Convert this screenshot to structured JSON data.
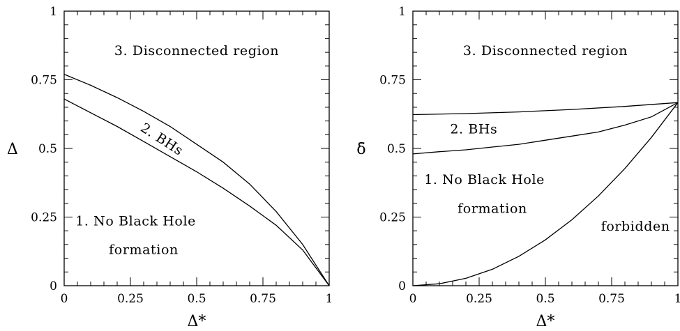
{
  "chart_data": [
    {
      "type": "line",
      "xlabel": "Δ*",
      "ylabel": "Δ",
      "xlim": [
        0,
        1
      ],
      "ylim": [
        0,
        1
      ],
      "grid": false,
      "xticks": [
        "0",
        "0.25",
        "0.5",
        "0.75",
        "1"
      ],
      "yticks": [
        "0",
        "0.25",
        "0.5",
        "0.75",
        "1"
      ],
      "series": [
        {
          "x": [
            0,
            0.1,
            0.2,
            0.3,
            0.4,
            0.5,
            0.6,
            0.7,
            0.8,
            0.9,
            1.0
          ],
          "y": [
            0.77,
            0.73,
            0.685,
            0.635,
            0.58,
            0.515,
            0.45,
            0.37,
            0.27,
            0.15,
            0.0
          ]
        },
        {
          "x": [
            0,
            0.1,
            0.2,
            0.3,
            0.4,
            0.5,
            0.6,
            0.7,
            0.8,
            0.9,
            1.0
          ],
          "y": [
            0.68,
            0.63,
            0.58,
            0.525,
            0.47,
            0.415,
            0.355,
            0.29,
            0.22,
            0.13,
            0.0
          ]
        }
      ],
      "annotations": [
        {
          "text": "3. Disconnected region",
          "x": 0.5,
          "y": 0.84,
          "rotate": 0
        },
        {
          "text": "2. BHs",
          "x": 0.36,
          "y": 0.52,
          "rotate": 33
        },
        {
          "text": "1. No Black Hole",
          "x": 0.27,
          "y": 0.22,
          "rotate": 0
        },
        {
          "text": "formation",
          "x": 0.3,
          "y": 0.115,
          "rotate": 0
        }
      ]
    },
    {
      "type": "line",
      "xlabel": "Δ*",
      "ylabel": "δ̄",
      "xlim": [
        0,
        1
      ],
      "ylim": [
        0,
        1
      ],
      "grid": false,
      "xticks": [
        "0",
        "0.25",
        "0.5",
        "0.75",
        "1"
      ],
      "yticks": [
        "0",
        "0.25",
        "0.5",
        "0.75",
        "1"
      ],
      "series": [
        {
          "x": [
            0,
            0.2,
            0.4,
            0.6,
            0.8,
            1.0
          ],
          "y": [
            0.623,
            0.627,
            0.633,
            0.642,
            0.653,
            0.667
          ]
        },
        {
          "x": [
            0,
            0.1,
            0.2,
            0.3,
            0.4,
            0.5,
            0.6,
            0.7,
            0.8,
            0.9,
            1.0
          ],
          "y": [
            0.48,
            0.488,
            0.495,
            0.505,
            0.515,
            0.53,
            0.545,
            0.56,
            0.585,
            0.615,
            0.667
          ]
        },
        {
          "x": [
            0,
            0.1,
            0.2,
            0.3,
            0.4,
            0.5,
            0.6,
            0.7,
            0.8,
            0.9,
            1.0
          ],
          "y": [
            0.0,
            0.007,
            0.027,
            0.06,
            0.107,
            0.167,
            0.24,
            0.327,
            0.427,
            0.54,
            0.667
          ]
        }
      ],
      "annotations": [
        {
          "text": "3. Disconnected region",
          "x": 0.5,
          "y": 0.84,
          "rotate": 0
        },
        {
          "text": "2. BHs",
          "x": 0.23,
          "y": 0.555,
          "rotate": 0
        },
        {
          "text": "1. No Black Hole",
          "x": 0.27,
          "y": 0.37,
          "rotate": 0
        },
        {
          "text": "formation",
          "x": 0.3,
          "y": 0.265,
          "rotate": 0
        },
        {
          "text": "forbidden",
          "x": 0.84,
          "y": 0.2,
          "rotate": 0
        }
      ]
    }
  ]
}
